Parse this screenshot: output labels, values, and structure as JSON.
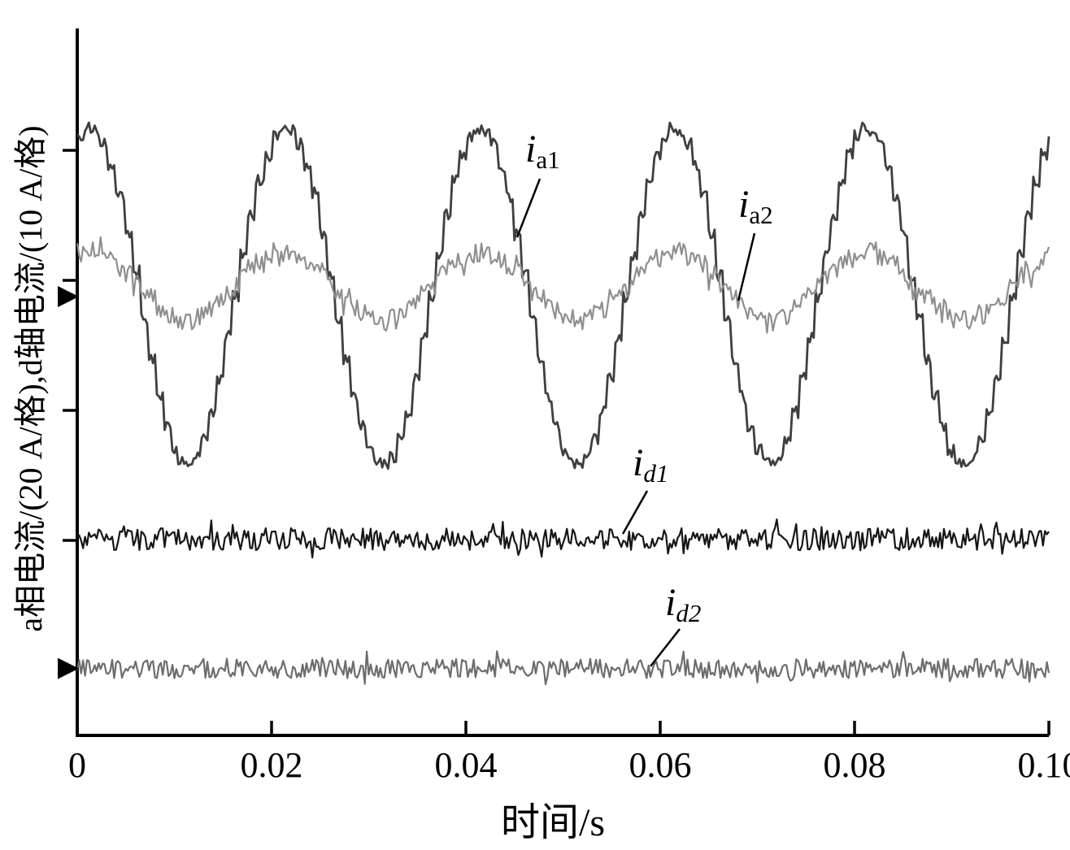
{
  "figure": {
    "background": "#ffffff",
    "axis_color": "#000000"
  },
  "chart_data": {
    "type": "line",
    "title": "",
    "xlabel": "时间/s",
    "ylabel": "a相电流/(20 A/格),d轴电流/(10 A/格)",
    "xlim": [
      0,
      0.1
    ],
    "x_ticks": [
      0,
      0.02,
      0.04,
      0.06,
      0.08,
      0.1
    ],
    "x_tick_labels": [
      "0",
      "0.02",
      "0.04",
      "0.06",
      "0.08",
      "0.10"
    ],
    "y_axis": {
      "a_phase_scale_per_div": "20 A",
      "d_axis_scale_per_div": "10 A",
      "grid": false,
      "tick_labels": []
    },
    "frequency_hz": 50,
    "legend_position": "inline-annotations",
    "series": [
      {
        "id": "ia1",
        "label_main": "i",
        "label_sub": "a1",
        "kind": "sine",
        "amplitude_A": 26,
        "scale_A_per_div": 20,
        "noise_A": 0.9,
        "phase_peak_s": 0.001,
        "center_div": 3.375,
        "color": "#3f3f3f",
        "width": 2.8,
        "zero_marker": true
      },
      {
        "id": "ia2",
        "label_main": "i",
        "label_sub": "a2",
        "kind": "sine",
        "amplitude_A": 5.3,
        "scale_A_per_div": 20,
        "noise_A": 1.6,
        "phase_peak_s": 0.001,
        "center_div": 3.455,
        "color": "#8f8f8f",
        "width": 2.2,
        "zero_marker": false
      },
      {
        "id": "id1",
        "label_main": "i",
        "label_sub": "d1",
        "kind": "flat",
        "amplitude_A": 0,
        "scale_A_per_div": 10,
        "noise_A": 0.85,
        "phase_peak_s": 0,
        "center_div": 1.51,
        "color": "#161616",
        "width": 2.2,
        "zero_marker": false
      },
      {
        "id": "id2",
        "label_main": "i",
        "label_sub": "d2",
        "kind": "flat",
        "amplitude_A": 0,
        "scale_A_per_div": 10,
        "noise_A": 0.75,
        "phase_peak_s": 0,
        "center_div": 0.515,
        "color": "#6d6d6d",
        "width": 2.2,
        "zero_marker": true
      }
    ]
  }
}
